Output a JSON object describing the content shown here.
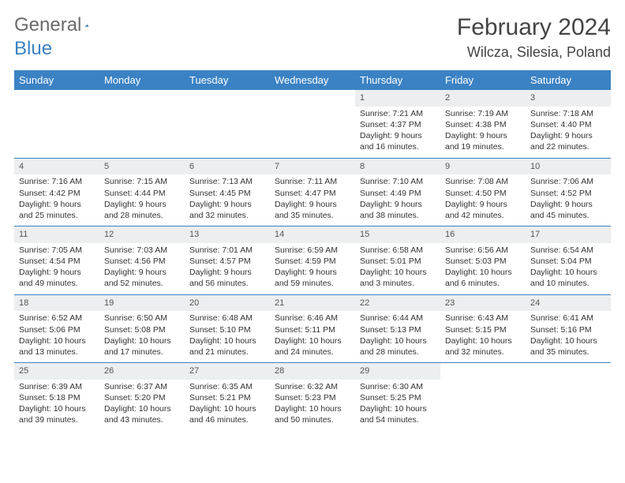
{
  "brand": {
    "general": "General",
    "blue": "Blue"
  },
  "title": "February 2024",
  "location": "Wilcza, Silesia, Poland",
  "colors": {
    "header_bg": "#3b82c4",
    "header_text": "#ffffff",
    "daynum_bg": "#eceeef",
    "body_text": "#333333",
    "logo_gray": "#6a6a6a",
    "logo_blue": "#3b82c4"
  },
  "day_labels": [
    "Sunday",
    "Monday",
    "Tuesday",
    "Wednesday",
    "Thursday",
    "Friday",
    "Saturday"
  ],
  "weeks": [
    [
      null,
      null,
      null,
      null,
      {
        "n": "1",
        "sr": "Sunrise: 7:21 AM",
        "ss": "Sunset: 4:37 PM",
        "d1": "Daylight: 9 hours",
        "d2": "and 16 minutes."
      },
      {
        "n": "2",
        "sr": "Sunrise: 7:19 AM",
        "ss": "Sunset: 4:38 PM",
        "d1": "Daylight: 9 hours",
        "d2": "and 19 minutes."
      },
      {
        "n": "3",
        "sr": "Sunrise: 7:18 AM",
        "ss": "Sunset: 4:40 PM",
        "d1": "Daylight: 9 hours",
        "d2": "and 22 minutes."
      }
    ],
    [
      {
        "n": "4",
        "sr": "Sunrise: 7:16 AM",
        "ss": "Sunset: 4:42 PM",
        "d1": "Daylight: 9 hours",
        "d2": "and 25 minutes."
      },
      {
        "n": "5",
        "sr": "Sunrise: 7:15 AM",
        "ss": "Sunset: 4:44 PM",
        "d1": "Daylight: 9 hours",
        "d2": "and 28 minutes."
      },
      {
        "n": "6",
        "sr": "Sunrise: 7:13 AM",
        "ss": "Sunset: 4:45 PM",
        "d1": "Daylight: 9 hours",
        "d2": "and 32 minutes."
      },
      {
        "n": "7",
        "sr": "Sunrise: 7:11 AM",
        "ss": "Sunset: 4:47 PM",
        "d1": "Daylight: 9 hours",
        "d2": "and 35 minutes."
      },
      {
        "n": "8",
        "sr": "Sunrise: 7:10 AM",
        "ss": "Sunset: 4:49 PM",
        "d1": "Daylight: 9 hours",
        "d2": "and 38 minutes."
      },
      {
        "n": "9",
        "sr": "Sunrise: 7:08 AM",
        "ss": "Sunset: 4:50 PM",
        "d1": "Daylight: 9 hours",
        "d2": "and 42 minutes."
      },
      {
        "n": "10",
        "sr": "Sunrise: 7:06 AM",
        "ss": "Sunset: 4:52 PM",
        "d1": "Daylight: 9 hours",
        "d2": "and 45 minutes."
      }
    ],
    [
      {
        "n": "11",
        "sr": "Sunrise: 7:05 AM",
        "ss": "Sunset: 4:54 PM",
        "d1": "Daylight: 9 hours",
        "d2": "and 49 minutes."
      },
      {
        "n": "12",
        "sr": "Sunrise: 7:03 AM",
        "ss": "Sunset: 4:56 PM",
        "d1": "Daylight: 9 hours",
        "d2": "and 52 minutes."
      },
      {
        "n": "13",
        "sr": "Sunrise: 7:01 AM",
        "ss": "Sunset: 4:57 PM",
        "d1": "Daylight: 9 hours",
        "d2": "and 56 minutes."
      },
      {
        "n": "14",
        "sr": "Sunrise: 6:59 AM",
        "ss": "Sunset: 4:59 PM",
        "d1": "Daylight: 9 hours",
        "d2": "and 59 minutes."
      },
      {
        "n": "15",
        "sr": "Sunrise: 6:58 AM",
        "ss": "Sunset: 5:01 PM",
        "d1": "Daylight: 10 hours",
        "d2": "and 3 minutes."
      },
      {
        "n": "16",
        "sr": "Sunrise: 6:56 AM",
        "ss": "Sunset: 5:03 PM",
        "d1": "Daylight: 10 hours",
        "d2": "and 6 minutes."
      },
      {
        "n": "17",
        "sr": "Sunrise: 6:54 AM",
        "ss": "Sunset: 5:04 PM",
        "d1": "Daylight: 10 hours",
        "d2": "and 10 minutes."
      }
    ],
    [
      {
        "n": "18",
        "sr": "Sunrise: 6:52 AM",
        "ss": "Sunset: 5:06 PM",
        "d1": "Daylight: 10 hours",
        "d2": "and 13 minutes."
      },
      {
        "n": "19",
        "sr": "Sunrise: 6:50 AM",
        "ss": "Sunset: 5:08 PM",
        "d1": "Daylight: 10 hours",
        "d2": "and 17 minutes."
      },
      {
        "n": "20",
        "sr": "Sunrise: 6:48 AM",
        "ss": "Sunset: 5:10 PM",
        "d1": "Daylight: 10 hours",
        "d2": "and 21 minutes."
      },
      {
        "n": "21",
        "sr": "Sunrise: 6:46 AM",
        "ss": "Sunset: 5:11 PM",
        "d1": "Daylight: 10 hours",
        "d2": "and 24 minutes."
      },
      {
        "n": "22",
        "sr": "Sunrise: 6:44 AM",
        "ss": "Sunset: 5:13 PM",
        "d1": "Daylight: 10 hours",
        "d2": "and 28 minutes."
      },
      {
        "n": "23",
        "sr": "Sunrise: 6:43 AM",
        "ss": "Sunset: 5:15 PM",
        "d1": "Daylight: 10 hours",
        "d2": "and 32 minutes."
      },
      {
        "n": "24",
        "sr": "Sunrise: 6:41 AM",
        "ss": "Sunset: 5:16 PM",
        "d1": "Daylight: 10 hours",
        "d2": "and 35 minutes."
      }
    ],
    [
      {
        "n": "25",
        "sr": "Sunrise: 6:39 AM",
        "ss": "Sunset: 5:18 PM",
        "d1": "Daylight: 10 hours",
        "d2": "and 39 minutes."
      },
      {
        "n": "26",
        "sr": "Sunrise: 6:37 AM",
        "ss": "Sunset: 5:20 PM",
        "d1": "Daylight: 10 hours",
        "d2": "and 43 minutes."
      },
      {
        "n": "27",
        "sr": "Sunrise: 6:35 AM",
        "ss": "Sunset: 5:21 PM",
        "d1": "Daylight: 10 hours",
        "d2": "and 46 minutes."
      },
      {
        "n": "28",
        "sr": "Sunrise: 6:32 AM",
        "ss": "Sunset: 5:23 PM",
        "d1": "Daylight: 10 hours",
        "d2": "and 50 minutes."
      },
      {
        "n": "29",
        "sr": "Sunrise: 6:30 AM",
        "ss": "Sunset: 5:25 PM",
        "d1": "Daylight: 10 hours",
        "d2": "and 54 minutes."
      },
      null,
      null
    ]
  ]
}
